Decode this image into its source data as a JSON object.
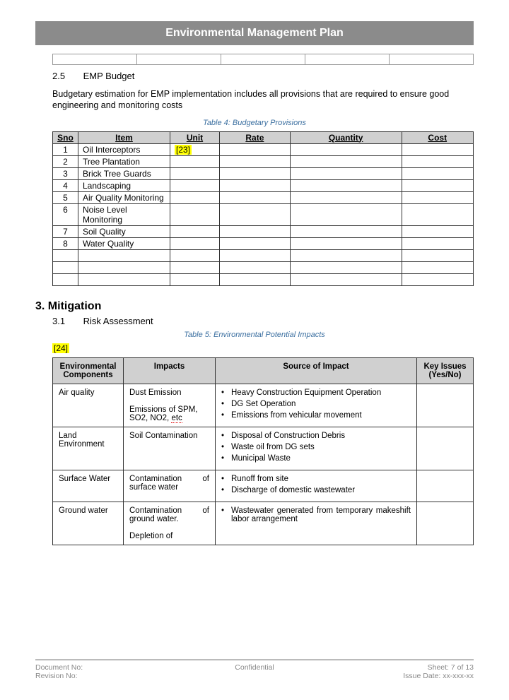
{
  "title": "Environmental Management Plan",
  "section25": {
    "number": "2.5",
    "heading": "EMP Budget",
    "paragraph": "Budgetary estimation for EMP implementation includes all provisions that are required to ensure good engineering and monitoring costs"
  },
  "table4": {
    "caption_prefix": "Table 4:",
    "caption": "Budgetary Provisions",
    "columns": [
      "Sno",
      "Item",
      "Unit",
      "Rate",
      "Quantity",
      "Cost"
    ],
    "annotation": "[23]",
    "rows": [
      {
        "sno": "1",
        "item": "Oil Interceptors"
      },
      {
        "sno": "2",
        "item": "Tree Plantation"
      },
      {
        "sno": "3",
        "item": "Brick Tree Guards"
      },
      {
        "sno": "4",
        "item": "Landscaping"
      },
      {
        "sno": "5",
        "item": "Air Quality Monitoring"
      },
      {
        "sno": "6",
        "item": "Noise Level Monitoring"
      },
      {
        "sno": "7",
        "item": "Soil Quality"
      },
      {
        "sno": "8",
        "item": "Water Quality"
      }
    ],
    "empty_rows": 3
  },
  "section3": {
    "number": "3.",
    "heading": "Mitigation"
  },
  "section31": {
    "number": "3.1",
    "heading": "Risk Assessment"
  },
  "table5": {
    "caption_prefix": "Table 5:",
    "caption": "Environmental Potential Impacts",
    "annotation": "[24]",
    "columns": [
      "Environmental Components",
      "Impacts",
      "Source of Impact",
      "Key Issues (Yes/No)"
    ],
    "rows": [
      {
        "component": "Air quality",
        "impacts_line1": "Dust Emission",
        "impacts_line2a": "Emissions of SPM, SO2, NO2, ",
        "impacts_line2b": "etc",
        "sources": [
          "Heavy Construction Equipment Operation",
          "DG Set Operation",
          "Emissions from vehicular movement"
        ]
      },
      {
        "component": "Land Environment",
        "impacts": "Soil Contamination",
        "sources": [
          "Disposal of Construction Debris",
          "Waste oil from DG sets",
          "Municipal Waste"
        ]
      },
      {
        "component": "Surface Water",
        "impacts": "Contamination of surface water",
        "sources": [
          "Runoff from site",
          "Discharge of domestic wastewater"
        ]
      },
      {
        "component": "Ground water",
        "impacts_line1": "Contamination of ground water.",
        "impacts_line2": "Depletion of",
        "sources": [
          "Wastewater generated from temporary makeshift labor arrangement"
        ]
      }
    ]
  },
  "footer": {
    "doc_no_label": "Document No:",
    "rev_no_label": "Revision No:",
    "confidential": "Confidential",
    "sheet": "Sheet: 7 of 13",
    "issue_date": "Issue Date: xx-xxx-xx"
  }
}
